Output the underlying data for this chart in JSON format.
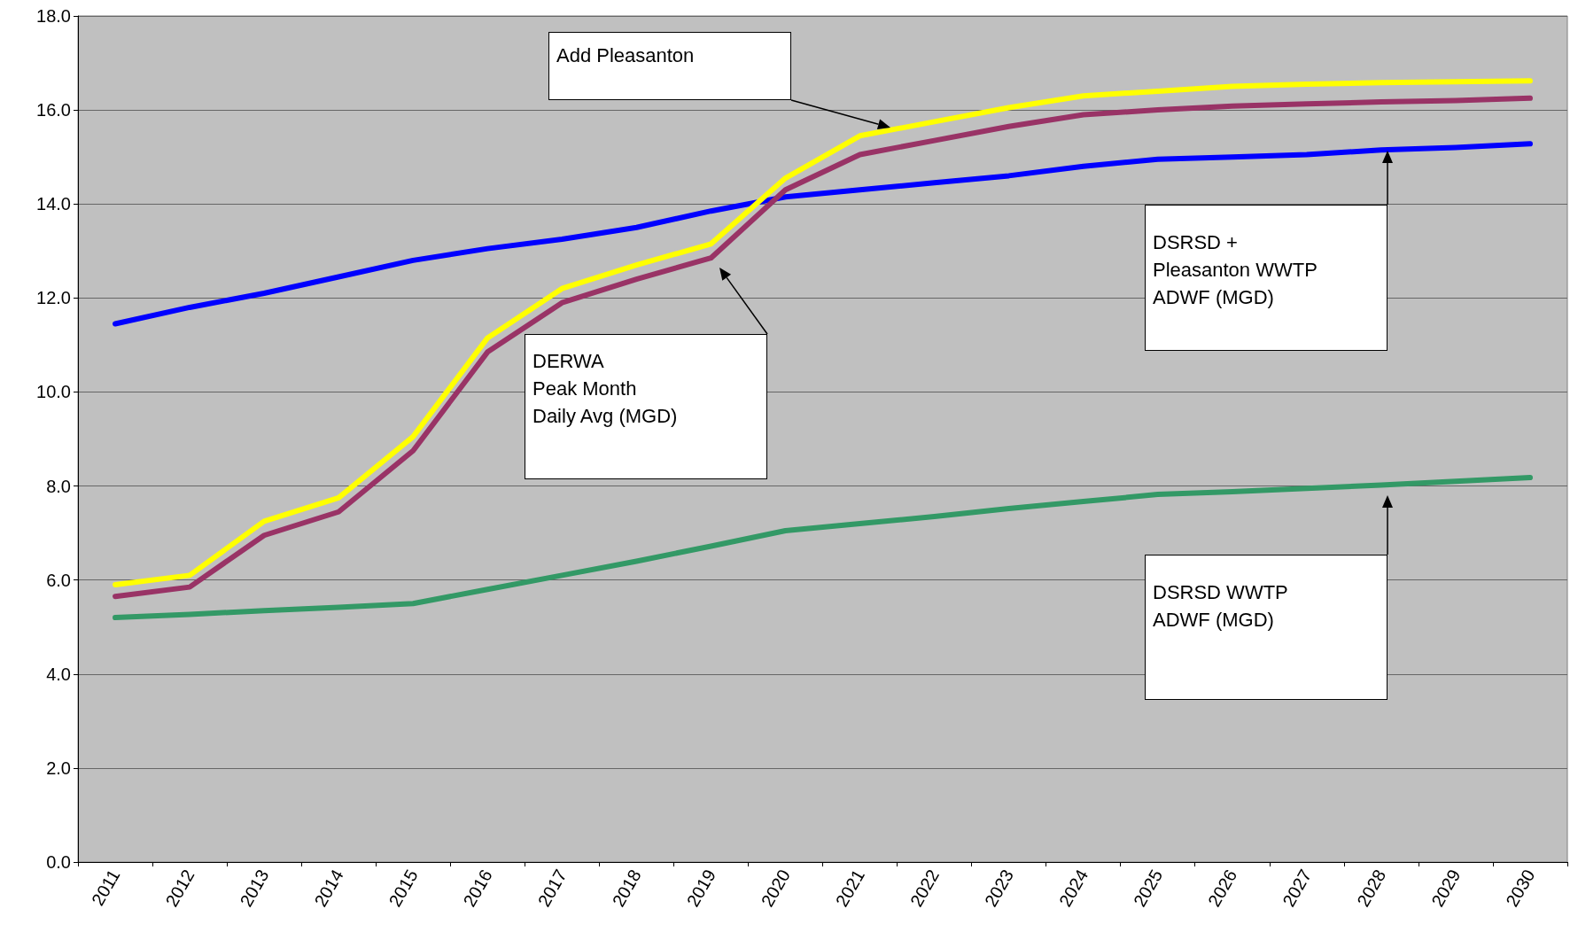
{
  "chart_data": {
    "type": "line",
    "categories": [
      "2011",
      "2012",
      "2013",
      "2014",
      "2015",
      "2016",
      "2017",
      "2018",
      "2019",
      "2020",
      "2021",
      "2022",
      "2023",
      "2024",
      "2025",
      "2026",
      "2027",
      "2028",
      "2029",
      "2030"
    ],
    "ylim": [
      0,
      18
    ],
    "yticks": [
      {
        "value": 0,
        "label": "0.0"
      },
      {
        "value": 2,
        "label": "2.0"
      },
      {
        "value": 4,
        "label": "4.0"
      },
      {
        "value": 6,
        "label": "6.0"
      },
      {
        "value": 8,
        "label": "8.0"
      },
      {
        "value": 10,
        "label": "10.0"
      },
      {
        "value": 12,
        "label": "12.0"
      },
      {
        "value": 14,
        "label": "14.0"
      },
      {
        "value": 16,
        "label": "16.0"
      },
      {
        "value": 18,
        "label": "18.0"
      }
    ],
    "grid": "y",
    "marker": "none",
    "line_style": "solid",
    "series": [
      {
        "color": "#0000ff",
        "values": [
          11.45,
          11.8,
          12.1,
          12.45,
          12.8,
          13.05,
          13.25,
          13.5,
          13.85,
          14.15,
          14.3,
          14.45,
          14.6,
          14.8,
          14.95,
          15.0,
          15.05,
          15.15,
          15.2,
          15.28
        ]
      },
      {
        "color": "#339966",
        "values": [
          5.2,
          5.27,
          5.35,
          5.42,
          5.5,
          5.8,
          6.1,
          6.4,
          6.72,
          7.05,
          7.2,
          7.35,
          7.52,
          7.67,
          7.82,
          7.88,
          7.95,
          8.02,
          8.1,
          8.18
        ]
      },
      {
        "color": "#ffff00",
        "values": [
          5.9,
          6.1,
          7.25,
          7.75,
          9.05,
          11.15,
          12.2,
          12.7,
          13.15,
          14.55,
          15.45,
          15.75,
          16.05,
          16.3,
          16.4,
          16.5,
          16.55,
          16.58,
          16.6,
          16.62
        ]
      },
      {
        "color": "#993366",
        "values": [
          5.65,
          5.85,
          6.95,
          7.45,
          8.75,
          10.85,
          11.9,
          12.4,
          12.85,
          14.3,
          15.05,
          15.35,
          15.65,
          15.9,
          16.0,
          16.08,
          16.13,
          16.17,
          16.2,
          16.25
        ]
      }
    ],
    "annotations": [
      "Add Pleasanton",
      "DERWA\nPeak Month\nDaily Avg (MGD)",
      "DSRSD +\nPleasanton WWTP\nADWF (MGD)",
      "DSRSD WWTP\nADWF (MGD)"
    ]
  }
}
